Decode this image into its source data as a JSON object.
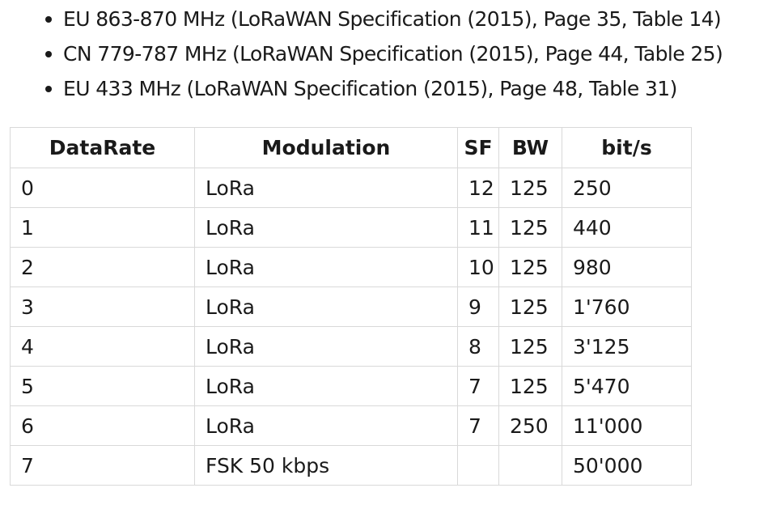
{
  "bullets": [
    "EU 863-870 MHz (LoRaWAN Specification (2015), Page 35, Table 14)",
    "CN 779-787 MHz (LoRaWAN Specification (2015), Page 44, Table 25)",
    "EU 433 MHz (LoRaWAN Specification (2015), Page 48, Table 31)"
  ],
  "table": {
    "headers": [
      "DataRate",
      "Modulation",
      "SF",
      "BW",
      "bit/s"
    ],
    "rows": [
      [
        "0",
        "LoRa",
        "12",
        "125",
        "250"
      ],
      [
        "1",
        "LoRa",
        "11",
        "125",
        "440"
      ],
      [
        "2",
        "LoRa",
        "10",
        "125",
        "980"
      ],
      [
        "3",
        "LoRa",
        "9",
        "125",
        "1'760"
      ],
      [
        "4",
        "LoRa",
        "8",
        "125",
        "3'125"
      ],
      [
        "5",
        "LoRa",
        "7",
        "125",
        "5'470"
      ],
      [
        "6",
        "LoRa",
        "7",
        "250",
        "11'000"
      ],
      [
        "7",
        "FSK 50 kbps",
        "",
        "",
        "50'000"
      ]
    ]
  }
}
